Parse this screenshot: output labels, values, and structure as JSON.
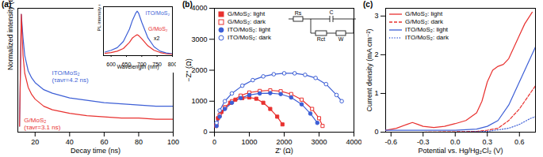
{
  "chart_data": [
    {
      "type": "line",
      "title": "(a)",
      "xlabel": "Decay time (ns)",
      "ylabel": "Normalized intensity (a.u.)",
      "xlim": [
        10,
        100
      ],
      "xticks": [
        20,
        40,
        60,
        80,
        100
      ],
      "ylim": [
        0,
        1.05
      ],
      "tick_labels": "x",
      "series": [
        {
          "name": "ITO/MoS₂",
          "label": "(τavr=4.2 ns)",
          "color": "#3d5fd6",
          "line_style": "solid",
          "x": [
            11,
            12,
            13,
            14,
            16,
            18,
            20,
            25,
            30,
            40,
            50,
            60,
            70,
            80,
            90,
            100
          ],
          "values": [
            0.05,
            1.0,
            0.8,
            0.65,
            0.52,
            0.46,
            0.42,
            0.36,
            0.33,
            0.29,
            0.27,
            0.25,
            0.24,
            0.23,
            0.22,
            0.22
          ]
        },
        {
          "name": "G/MoS₂",
          "label": "(τavr=3.1 ns)",
          "color": "#e8312f",
          "line_style": "solid",
          "x": [
            11,
            12,
            13,
            14,
            16,
            18,
            20,
            25,
            30,
            40,
            50,
            60,
            70,
            80,
            90,
            100
          ],
          "values": [
            0.05,
            1.0,
            0.65,
            0.5,
            0.38,
            0.32,
            0.28,
            0.22,
            0.19,
            0.16,
            0.14,
            0.13,
            0.12,
            0.12,
            0.11,
            0.11
          ]
        }
      ]
    },
    {
      "type": "line",
      "xlabel": "Wavelength (nm)",
      "ylabel": "PL intensity (a.u.)",
      "xlim": [
        575,
        800
      ],
      "xticks": [
        600,
        650,
        700,
        750,
        800
      ],
      "ylim": [
        0,
        1.1
      ],
      "tick_labels": "x",
      "annotations": [
        "x2"
      ],
      "series": [
        {
          "name": "ITO/MoS₂",
          "color": "#3d5fd6",
          "line_style": "solid",
          "x": [
            580,
            600,
            620,
            640,
            660,
            670,
            680,
            685,
            690,
            700,
            720,
            740,
            760,
            780,
            800
          ],
          "values": [
            0.08,
            0.12,
            0.18,
            0.32,
            0.6,
            0.8,
            0.95,
            1.0,
            0.95,
            0.75,
            0.4,
            0.2,
            0.1,
            0.06,
            0.04
          ]
        },
        {
          "name": "G/MoS₂",
          "color": "#e8312f",
          "line_style": "solid",
          "x": [
            580,
            600,
            620,
            640,
            660,
            670,
            680,
            685,
            690,
            700,
            720,
            740,
            760,
            780,
            800
          ],
          "values": [
            0.05,
            0.07,
            0.1,
            0.16,
            0.3,
            0.4,
            0.45,
            0.47,
            0.45,
            0.38,
            0.22,
            0.12,
            0.07,
            0.04,
            0.03
          ]
        }
      ]
    },
    {
      "type": "scatter",
      "title": "(b)",
      "xlabel": "Z' (Ω)",
      "ylabel": "−Z'' (Ω)",
      "xlim": [
        0,
        4000
      ],
      "xticks": [
        0,
        1000,
        2000,
        3000,
        4000
      ],
      "ylim": [
        0,
        4000
      ],
      "yticks": [
        0,
        1000,
        2000,
        3000,
        4000
      ],
      "legend": "top-left",
      "annotations": [
        "Rs",
        "C",
        "Rct",
        "W"
      ],
      "series": [
        {
          "name": "G/MoS₂: light",
          "color": "#e8312f",
          "marker": "square",
          "line_style": "solid",
          "x": [
            50,
            100,
            200,
            300,
            450,
            600,
            800,
            1000,
            1200,
            1400,
            1600,
            1800,
            1950
          ],
          "values": [
            200,
            450,
            650,
            800,
            950,
            1050,
            1100,
            1120,
            1080,
            950,
            750,
            500,
            250
          ]
        },
        {
          "name": "G/MoS₂: dark",
          "color": "#e8312f",
          "marker": "open square",
          "line_style": "solid",
          "x": [
            60,
            150,
            300,
            500,
            750,
            1000,
            1300,
            1600,
            1900,
            2200,
            2500,
            2800,
            3000,
            3100
          ],
          "values": [
            250,
            550,
            800,
            1000,
            1180,
            1280,
            1330,
            1350,
            1320,
            1230,
            1050,
            750,
            450,
            200
          ]
        },
        {
          "name": "ITO/MoS₂: light",
          "color": "#3d5fd6",
          "marker": "circle",
          "line_style": "solid",
          "x": [
            60,
            150,
            300,
            500,
            750,
            1000,
            1300,
            1600,
            1900,
            2200,
            2500,
            2750,
            2950
          ],
          "values": [
            200,
            500,
            750,
            950,
            1100,
            1200,
            1250,
            1260,
            1230,
            1120,
            900,
            600,
            300
          ]
        },
        {
          "name": "ITO/MoS₂: dark",
          "color": "#3d5fd6",
          "marker": "open circle",
          "line_style": "solid",
          "x": [
            60,
            150,
            300,
            500,
            800,
            1100,
            1400,
            1700,
            2000,
            2300,
            2600,
            2900,
            3200,
            3500,
            3650
          ],
          "values": [
            300,
            700,
            1000,
            1250,
            1500,
            1680,
            1800,
            1870,
            1900,
            1900,
            1850,
            1750,
            1550,
            1200,
            1000
          ]
        }
      ]
    },
    {
      "type": "line",
      "title": "(c)",
      "xlabel": "Potential vs. Hg/Hg₂Cl₂ (V)",
      "ylabel": "Current density (mA cm⁻²)",
      "xlim": [
        -0.65,
        0.75
      ],
      "xticks": [
        -0.6,
        -0.3,
        {
          "value": 0,
          "label": "0.0"
        },
        0.3,
        0.6
      ],
      "ylim": [
        0,
        3.2
      ],
      "yticks": [
        0,
        1,
        2,
        3
      ],
      "legend": "top-left",
      "series": [
        {
          "name": "G/MoS₂: light",
          "color": "#e8312f",
          "line_style": "solid",
          "x": [
            -0.65,
            -0.55,
            -0.45,
            -0.4,
            -0.35,
            -0.3,
            -0.2,
            -0.1,
            0.0,
            0.1,
            0.2,
            0.25,
            0.3,
            0.35,
            0.4,
            0.45,
            0.5,
            0.55,
            0.6,
            0.65,
            0.72
          ],
          "values": [
            0.05,
            0.1,
            0.2,
            0.25,
            0.2,
            0.15,
            0.12,
            0.15,
            0.22,
            0.3,
            0.5,
            0.8,
            1.3,
            1.6,
            1.7,
            1.75,
            1.9,
            2.2,
            2.5,
            2.8,
            3.1
          ]
        },
        {
          "name": "G/MoS₂: dark",
          "color": "#e8312f",
          "line_style": "dashed",
          "x": [
            -0.65,
            -0.3,
            0.0,
            0.2,
            0.3,
            0.4,
            0.5,
            0.6,
            0.7,
            0.75
          ],
          "values": [
            0.0,
            0.0,
            0.01,
            0.02,
            0.05,
            0.1,
            0.3,
            0.6,
            1.0,
            1.2
          ]
        },
        {
          "name": "ITO/MoS₂: light",
          "color": "#3d5fd6",
          "line_style": "solid",
          "x": [
            -0.65,
            -0.3,
            0.0,
            0.2,
            0.3,
            0.4,
            0.5,
            0.6,
            0.7,
            0.75
          ],
          "values": [
            0.05,
            0.05,
            0.05,
            0.08,
            0.15,
            0.3,
            0.7,
            1.3,
            1.9,
            2.2
          ]
        },
        {
          "name": "ITO/MoS₂: dark",
          "color": "#3d5fd6",
          "line_style": "dotted",
          "x": [
            -0.65,
            -0.3,
            0.0,
            0.3,
            0.5,
            0.6,
            0.7,
            0.75
          ],
          "values": [
            0.0,
            0.0,
            0.0,
            0.02,
            0.1,
            0.2,
            0.35,
            0.4
          ]
        }
      ]
    }
  ]
}
